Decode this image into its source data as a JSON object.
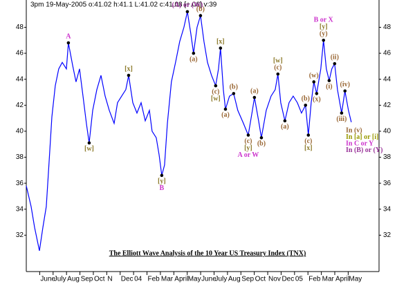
{
  "chart_data": {
    "type": "line",
    "header": "3pm 19-May-2005 o:41.02 h:41.1 L:41.02 c:41.08 [+.06] v:39",
    "title": "The Elliott Wave Analysis of the 10 Year US Treasury Index (TNX)",
    "xlim": [
      0,
      26.3
    ],
    "ylim": [
      29.2,
      50.1
    ],
    "yticks": [
      32,
      34,
      36,
      38,
      40,
      42,
      44,
      46,
      48
    ],
    "xticks": [
      {
        "value": 1,
        "label": "June"
      },
      {
        "value": 2,
        "label": "July"
      },
      {
        "value": 3,
        "label": "Aug"
      },
      {
        "value": 4,
        "label": "Sep"
      },
      {
        "value": 5,
        "label": "Oct"
      },
      {
        "value": 6,
        "label": "N"
      },
      {
        "value": 7,
        "label": "Dec"
      },
      {
        "value": 8,
        "label": "04"
      },
      {
        "value": 9,
        "label": "Feb"
      },
      {
        "value": 10,
        "label": "Mar"
      },
      {
        "value": 11,
        "label": "April"
      },
      {
        "value": 12,
        "label": "May"
      },
      {
        "value": 13,
        "label": "June"
      },
      {
        "value": 14,
        "label": "July"
      },
      {
        "value": 15,
        "label": "Aug"
      },
      {
        "value": 16,
        "label": "Sep"
      },
      {
        "value": 17,
        "label": "Oct"
      },
      {
        "value": 18,
        "label": "Nov"
      },
      {
        "value": 19,
        "label": "Dec"
      },
      {
        "value": 20,
        "label": "05"
      },
      {
        "value": 21,
        "label": "Feb"
      },
      {
        "value": 22,
        "label": "Mar"
      },
      {
        "value": 23,
        "label": "April"
      },
      {
        "value": 24,
        "label": "May"
      }
    ],
    "grid": false,
    "series": [
      {
        "color": "#0000ff",
        "x": [
          0,
          0.36,
          0.62,
          0.98,
          1.24,
          1.49,
          1.65,
          1.91,
          2.16,
          2.42,
          2.68,
          2.99,
          3.14,
          3.45,
          3.71,
          3.97,
          4.23,
          4.48,
          4.69,
          4.95,
          5.26,
          5.57,
          5.88,
          6.19,
          6.55,
          6.8,
          7.11,
          7.42,
          7.63,
          7.94,
          8.25,
          8.56,
          8.87,
          9.18,
          9.38,
          9.69,
          9.9,
          10.1,
          10.31,
          10.52,
          10.82,
          11.13,
          11.44,
          11.75,
          12.01,
          12.27,
          12.47,
          12.73,
          12.99,
          13.25,
          13.51,
          13.81,
          14.12,
          14.33,
          14.48,
          14.69,
          14.85,
          15.15,
          15.46,
          15.77,
          16.19,
          16.55,
          16.86,
          17.01,
          17.32,
          17.53,
          17.89,
          18.25,
          18.56,
          18.76,
          18.97,
          19.28,
          19.59,
          19.9,
          20.21,
          20.52,
          20.82,
          21.03,
          21.24,
          21.44,
          21.65,
          21.96,
          22.16,
          22.37,
          22.58,
          22.78,
          22.99,
          23.2,
          23.51,
          23.76,
          24.02,
          24.23
        ],
        "values": [
          35.8,
          34.2,
          32.6,
          30.8,
          32.6,
          34.2,
          36.8,
          41.1,
          43.5,
          44.8,
          45.3,
          44.8,
          46.8,
          45.1,
          43.8,
          44.8,
          42.7,
          40.6,
          39.1,
          41.6,
          43.2,
          44.3,
          42.7,
          41.6,
          40.6,
          42.2,
          42.7,
          43.2,
          44.3,
          42.2,
          41.4,
          42.2,
          40.8,
          41.6,
          40.0,
          39.5,
          38.2,
          36.6,
          37.4,
          40.6,
          43.8,
          45.3,
          46.9,
          48.0,
          49.2,
          47.5,
          46.0,
          48.0,
          48.9,
          46.9,
          45.3,
          44.3,
          43.5,
          44.8,
          46.4,
          43.2,
          41.7,
          42.7,
          42.9,
          41.6,
          40.6,
          39.7,
          41.6,
          42.6,
          40.8,
          39.5,
          41.6,
          42.7,
          43.2,
          44.4,
          42.2,
          40.8,
          42.2,
          42.7,
          42.2,
          41.4,
          42.0,
          39.7,
          42.2,
          43.8,
          42.9,
          44.8,
          47.0,
          44.8,
          43.9,
          44.8,
          45.2,
          43.2,
          41.4,
          43.1,
          41.6,
          40.7
        ]
      }
    ],
    "annotations": [
      {
        "text": "A",
        "x": 3.14,
        "y": 46.8,
        "position": "above",
        "color": "#cc33cc"
      },
      {
        "text": "[w]",
        "x": 4.69,
        "y": 39.1,
        "position": "below",
        "color": "#8c7a2a"
      },
      {
        "text": "[x]",
        "x": 7.63,
        "y": 44.3,
        "position": "above",
        "color": "#8c7a2a"
      },
      {
        "text": "[y]",
        "x": 10.1,
        "y": 36.6,
        "position": "below",
        "color": "#8c7a2a"
      },
      {
        "text": "B",
        "x": 10.1,
        "y": 36.6,
        "position": "below2",
        "color": "#cc33cc"
      },
      {
        "text": "(A) or (W)",
        "x": 12.01,
        "y": 49.2,
        "position": "above",
        "color": "#993399"
      },
      {
        "text": "(a)",
        "x": 12.47,
        "y": 46.0,
        "position": "below",
        "color": "#996633"
      },
      {
        "text": "(b)",
        "x": 12.99,
        "y": 48.9,
        "position": "above",
        "color": "#996633"
      },
      {
        "text": "(c)",
        "x": 14.12,
        "y": 43.5,
        "position": "below",
        "color": "#996633"
      },
      {
        "text": "[w]",
        "x": 14.12,
        "y": 43.5,
        "position": "below2",
        "color": "#8c7a2a"
      },
      {
        "text": "[x]",
        "x": 14.48,
        "y": 46.4,
        "position": "above",
        "color": "#8c7a2a"
      },
      {
        "text": "(a)",
        "x": 14.85,
        "y": 41.7,
        "position": "below",
        "color": "#996633"
      },
      {
        "text": "(b)",
        "x": 15.46,
        "y": 42.9,
        "position": "above",
        "color": "#996633"
      },
      {
        "text": "(c)",
        "x": 16.55,
        "y": 39.7,
        "position": "below",
        "color": "#996633"
      },
      {
        "text": "[y]",
        "x": 16.55,
        "y": 39.7,
        "position": "below2",
        "color": "#8c7a2a"
      },
      {
        "text": "A or W",
        "x": 16.55,
        "y": 39.7,
        "position": "below3",
        "color": "#cc33cc"
      },
      {
        "text": "(a)",
        "x": 17.01,
        "y": 42.6,
        "position": "above",
        "color": "#996633"
      },
      {
        "text": "(b)",
        "x": 17.53,
        "y": 39.5,
        "position": "below",
        "color": "#996633"
      },
      {
        "text": "(c)",
        "x": 18.76,
        "y": 44.4,
        "position": "above",
        "color": "#996633"
      },
      {
        "text": "[w]",
        "x": 18.76,
        "y": 44.4,
        "position": "above2",
        "color": "#8c7a2a"
      },
      {
        "text": "(a)",
        "x": 19.28,
        "y": 40.8,
        "position": "below",
        "color": "#996633"
      },
      {
        "text": "(b)",
        "x": 20.82,
        "y": 42.0,
        "position": "above",
        "color": "#996633"
      },
      {
        "text": "(c)",
        "x": 21.03,
        "y": 39.7,
        "position": "below",
        "color": "#996633"
      },
      {
        "text": "[x]",
        "x": 21.03,
        "y": 39.7,
        "position": "below2",
        "color": "#8c7a2a"
      },
      {
        "text": "(w)",
        "x": 21.44,
        "y": 43.8,
        "position": "above",
        "color": "#996633"
      },
      {
        "text": "(x)",
        "x": 21.65,
        "y": 42.9,
        "position": "below",
        "color": "#996633"
      },
      {
        "text": "(y)",
        "x": 22.16,
        "y": 47.0,
        "position": "above",
        "color": "#996633"
      },
      {
        "text": "[y]",
        "x": 22.16,
        "y": 47.0,
        "position": "above2",
        "color": "#8c7a2a"
      },
      {
        "text": "B or X",
        "x": 22.16,
        "y": 47.0,
        "position": "above3",
        "color": "#cc33cc"
      },
      {
        "text": "(i)",
        "x": 22.58,
        "y": 43.9,
        "position": "below",
        "color": "#996633"
      },
      {
        "text": "(ii)",
        "x": 22.99,
        "y": 45.2,
        "position": "above",
        "color": "#996633"
      },
      {
        "text": "(iii)",
        "x": 23.51,
        "y": 41.4,
        "position": "below",
        "color": "#996633"
      },
      {
        "text": "(iv)",
        "x": 23.76,
        "y": 43.1,
        "position": "above",
        "color": "#996633"
      }
    ],
    "notes": [
      {
        "text": "In (v)",
        "color": "#996633"
      },
      {
        "text": "In [a] or [i]",
        "color": "#999900"
      },
      {
        "text": "In C or Y",
        "color": "#cc33cc"
      },
      {
        "text": "In (B) or (Y)",
        "color": "#993399"
      }
    ]
  }
}
